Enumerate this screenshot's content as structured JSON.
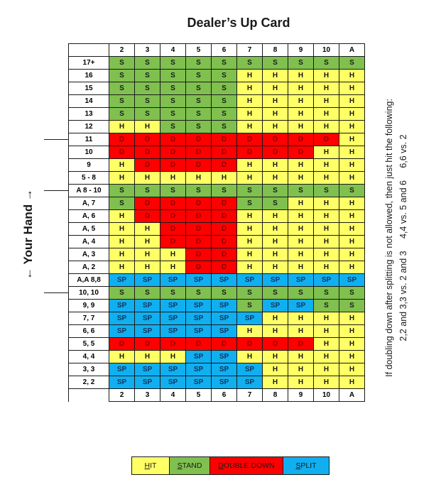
{
  "title": "Dealer’s Up Card",
  "side_label": "← Your Hand →",
  "columns": [
    "2",
    "3",
    "4",
    "5",
    "6",
    "7",
    "8",
    "9",
    "10",
    "A"
  ],
  "rows": [
    {
      "label": "17+",
      "cells": [
        "S",
        "S",
        "S",
        "S",
        "S",
        "S",
        "S",
        "S",
        "S",
        "S"
      ]
    },
    {
      "label": "16",
      "cells": [
        "S",
        "S",
        "S",
        "S",
        "S",
        "H",
        "H",
        "H",
        "H",
        "H"
      ]
    },
    {
      "label": "15",
      "cells": [
        "S",
        "S",
        "S",
        "S",
        "S",
        "H",
        "H",
        "H",
        "H",
        "H"
      ]
    },
    {
      "label": "14",
      "cells": [
        "S",
        "S",
        "S",
        "S",
        "S",
        "H",
        "H",
        "H",
        "H",
        "H"
      ]
    },
    {
      "label": "13",
      "cells": [
        "S",
        "S",
        "S",
        "S",
        "S",
        "H",
        "H",
        "H",
        "H",
        "H"
      ]
    },
    {
      "label": "12",
      "cells": [
        "H",
        "H",
        "S",
        "S",
        "S",
        "H",
        "H",
        "H",
        "H",
        "H"
      ]
    },
    {
      "label": "11",
      "cells": [
        "D",
        "D",
        "D",
        "D",
        "D",
        "D",
        "D",
        "D",
        "D",
        "H"
      ]
    },
    {
      "label": "10",
      "cells": [
        "D",
        "D",
        "D",
        "D",
        "D",
        "D",
        "D",
        "D",
        "H",
        "H"
      ]
    },
    {
      "label": "9",
      "cells": [
        "H",
        "D",
        "D",
        "D",
        "D",
        "H",
        "H",
        "H",
        "H",
        "H"
      ]
    },
    {
      "label": "5 - 8",
      "cells": [
        "H",
        "H",
        "H",
        "H",
        "H",
        "H",
        "H",
        "H",
        "H",
        "H"
      ]
    },
    {
      "label": "A 8 - 10",
      "cells": [
        "S",
        "S",
        "S",
        "S",
        "S",
        "S",
        "S",
        "S",
        "S",
        "S"
      ]
    },
    {
      "label": "A, 7",
      "cells": [
        "S",
        "D",
        "D",
        "D",
        "D",
        "S",
        "S",
        "H",
        "H",
        "H"
      ]
    },
    {
      "label": "A, 6",
      "cells": [
        "H",
        "D",
        "D",
        "D",
        "D",
        "H",
        "H",
        "H",
        "H",
        "H"
      ]
    },
    {
      "label": "A, 5",
      "cells": [
        "H",
        "H",
        "D",
        "D",
        "D",
        "H",
        "H",
        "H",
        "H",
        "H"
      ]
    },
    {
      "label": "A, 4",
      "cells": [
        "H",
        "H",
        "D",
        "D",
        "D",
        "H",
        "H",
        "H",
        "H",
        "H"
      ]
    },
    {
      "label": "A, 3",
      "cells": [
        "H",
        "H",
        "H",
        "D",
        "D",
        "H",
        "H",
        "H",
        "H",
        "H"
      ]
    },
    {
      "label": "A, 2",
      "cells": [
        "H",
        "H",
        "H",
        "D",
        "D",
        "H",
        "H",
        "H",
        "H",
        "H"
      ]
    },
    {
      "label": "A,A 8,8",
      "cells": [
        "SP",
        "SP",
        "SP",
        "SP",
        "SP",
        "SP",
        "SP",
        "SP",
        "SP",
        "SP"
      ]
    },
    {
      "label": "10, 10",
      "cells": [
        "S",
        "S",
        "S",
        "S",
        "S",
        "S",
        "S",
        "S",
        "S",
        "S"
      ]
    },
    {
      "label": "9, 9",
      "cells": [
        "SP",
        "SP",
        "SP",
        "SP",
        "SP",
        "S",
        "SP",
        "SP",
        "S",
        "S"
      ]
    },
    {
      "label": "7, 7",
      "cells": [
        "SP",
        "SP",
        "SP",
        "SP",
        "SP",
        "SP",
        "H",
        "H",
        "H",
        "H"
      ]
    },
    {
      "label": "6, 6",
      "cells": [
        "SP",
        "SP",
        "SP",
        "SP",
        "SP",
        "H",
        "H",
        "H",
        "H",
        "H"
      ]
    },
    {
      "label": "5, 5",
      "cells": [
        "D",
        "D",
        "D",
        "D",
        "D",
        "D",
        "D",
        "D",
        "H",
        "H"
      ]
    },
    {
      "label": "4, 4",
      "cells": [
        "H",
        "H",
        "H",
        "SP",
        "SP",
        "H",
        "H",
        "H",
        "H",
        "H"
      ]
    },
    {
      "label": "3, 3",
      "cells": [
        "SP",
        "SP",
        "SP",
        "SP",
        "SP",
        "SP",
        "H",
        "H",
        "H",
        "H"
      ]
    },
    {
      "label": "2, 2",
      "cells": [
        "SP",
        "SP",
        "SP",
        "SP",
        "SP",
        "SP",
        "H",
        "H",
        "H",
        "H"
      ]
    }
  ],
  "note": {
    "line1": "If doubling down after splitting is not allowed, then just hit the following:",
    "line2": "2,2 and 3,3 vs. 2 and 3     4,4 vs. 5 and 6     6,6 vs. 2"
  },
  "legend": [
    {
      "code": "H",
      "key": "H",
      "rest": "IT",
      "width": 52
    },
    {
      "code": "S",
      "key": "S",
      "rest": "TAND",
      "width": 56
    },
    {
      "code": "D",
      "key": "D",
      "rest": "OUBLE DOWN",
      "width": 102
    },
    {
      "code": "SP",
      "key": "S",
      "rest": "PLIT",
      "width": 64
    }
  ],
  "colors": {
    "hit": "#ffff66",
    "stand": "#7fc04f",
    "double": "#ff0000",
    "split": "#10aff0"
  }
}
